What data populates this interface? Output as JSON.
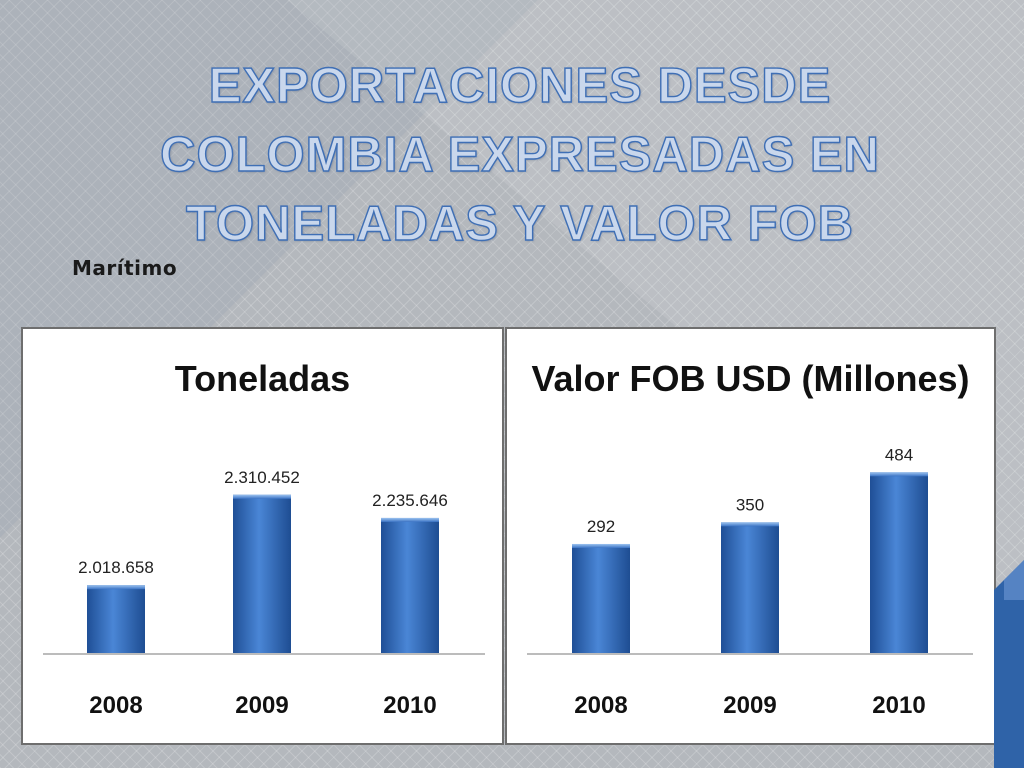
{
  "slide": {
    "title": "EXPORTACIONES DESDE COLOMBIA EXPRESADAS EN TONELADAS Y VALOR FOB",
    "subtitle": "Marítimo",
    "accent_color": "#3f6fb5",
    "bar_color": "#2e64b4"
  },
  "chart_data": [
    {
      "type": "bar",
      "title": "Toneladas",
      "categories": [
        "2008",
        "2009",
        "2010"
      ],
      "values": [
        2018658,
        2310452,
        2235646
      ],
      "data_labels": [
        "2.018.658",
        "2.310.452",
        "2.235.646"
      ],
      "ylim": [
        1800000,
        2400000
      ],
      "grid": false,
      "legend": "none"
    },
    {
      "type": "bar",
      "title": "Valor FOB USD (Millones)",
      "categories": [
        "2008",
        "2009",
        "2010"
      ],
      "values": [
        292,
        350,
        484
      ],
      "data_labels": [
        "292",
        "350",
        "484"
      ],
      "ylim": [
        0,
        600
      ],
      "grid": false,
      "legend": "none"
    }
  ]
}
